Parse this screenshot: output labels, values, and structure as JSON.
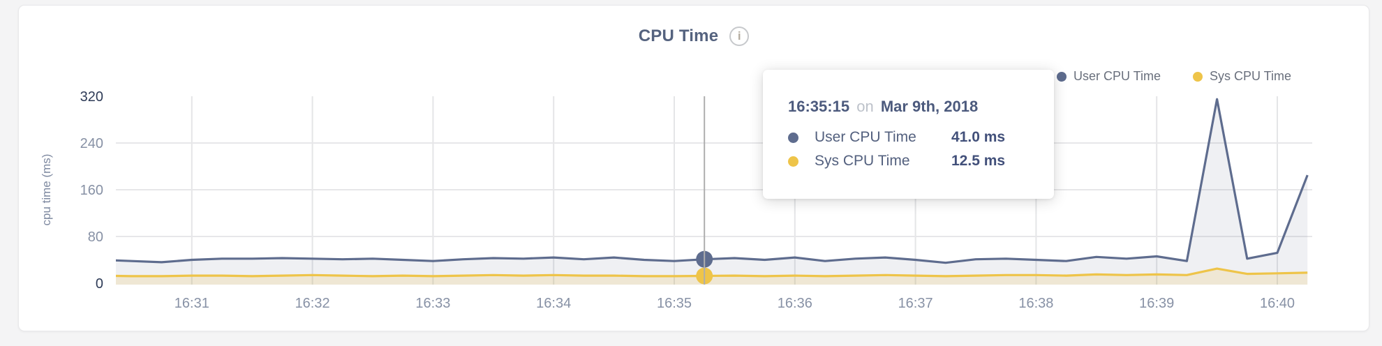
{
  "header": {
    "title": "CPU Time",
    "info_icon": "i"
  },
  "legend": {
    "items": [
      {
        "label": "User CPU Time",
        "color": "#5e6c8e"
      },
      {
        "label": "Sys CPU Time",
        "color": "#eec449"
      }
    ]
  },
  "tooltip": {
    "time": "16:35:15",
    "conjunction": "on",
    "date": "Mar 9th, 2018",
    "rows": [
      {
        "label": "User CPU Time",
        "value": "41.0 ms",
        "color": "#5e6c8e"
      },
      {
        "label": "Sys CPU Time",
        "value": "12.5 ms",
        "color": "#eec449"
      }
    ]
  },
  "chart_data": {
    "type": "line",
    "title": "CPU Time",
    "xlabel": "",
    "ylabel": "cpu time (ms)",
    "ylim": [
      0,
      320
    ],
    "grid": "on",
    "legend_position": "top-right",
    "y_ticks": [
      {
        "label": "320",
        "value": 320,
        "emphasis": true,
        "gridline": false
      },
      {
        "label": "240",
        "value": 240,
        "emphasis": false,
        "gridline": true
      },
      {
        "label": "160",
        "value": 160,
        "emphasis": false,
        "gridline": true
      },
      {
        "label": "80",
        "value": 80,
        "emphasis": false,
        "gridline": true
      },
      {
        "label": "0",
        "value": 0,
        "emphasis": true,
        "gridline": false
      }
    ],
    "x_ticks": [
      "16:31",
      "16:32",
      "16:33",
      "16:34",
      "16:35",
      "16:36",
      "16:37",
      "16:38",
      "16:39",
      "16:40"
    ],
    "x": [
      "16:30:15",
      "16:30:30",
      "16:30:45",
      "16:31:00",
      "16:31:15",
      "16:31:30",
      "16:31:45",
      "16:32:00",
      "16:32:15",
      "16:32:30",
      "16:32:45",
      "16:33:00",
      "16:33:15",
      "16:33:30",
      "16:33:45",
      "16:34:00",
      "16:34:15",
      "16:34:30",
      "16:34:45",
      "16:35:00",
      "16:35:15",
      "16:35:30",
      "16:35:45",
      "16:36:00",
      "16:36:15",
      "16:36:30",
      "16:36:45",
      "16:37:00",
      "16:37:15",
      "16:37:30",
      "16:37:45",
      "16:38:00",
      "16:38:15",
      "16:38:30",
      "16:38:45",
      "16:39:00",
      "16:39:15",
      "16:39:30",
      "16:39:45",
      "16:40:00",
      "16:40:15"
    ],
    "series": [
      {
        "name": "User CPU Time",
        "color": "#5e6c8e",
        "fill_color": "rgba(94,108,142,0.10)",
        "unit": "ms",
        "values": [
          40,
          38,
          36,
          40,
          42,
          42,
          43,
          42,
          41,
          42,
          40,
          38,
          41,
          43,
          42,
          44,
          41,
          44,
          40,
          38,
          41,
          43,
          40,
          44,
          38,
          42,
          44,
          40,
          35,
          41,
          42,
          40,
          38,
          45,
          42,
          46,
          38,
          315,
          42,
          52,
          185
        ]
      },
      {
        "name": "Sys CPU Time",
        "color": "#eec449",
        "fill_color": "rgba(238,196,73,0.18)",
        "unit": "ms",
        "values": [
          13,
          12,
          12,
          13,
          13,
          12,
          13,
          14,
          13,
          12,
          13,
          12,
          13,
          14,
          13,
          14,
          13,
          13,
          12,
          12,
          12.5,
          13,
          12,
          13,
          12,
          13,
          14,
          13,
          12,
          13,
          14,
          14,
          13,
          15,
          14,
          15,
          14,
          25,
          16,
          17,
          18
        ]
      }
    ],
    "selected_index": 20,
    "selected_point": {
      "time": "16:35:15",
      "date": "Mar 9th, 2018",
      "user_cpu_ms": 41.0,
      "sys_cpu_ms": 12.5
    }
  }
}
